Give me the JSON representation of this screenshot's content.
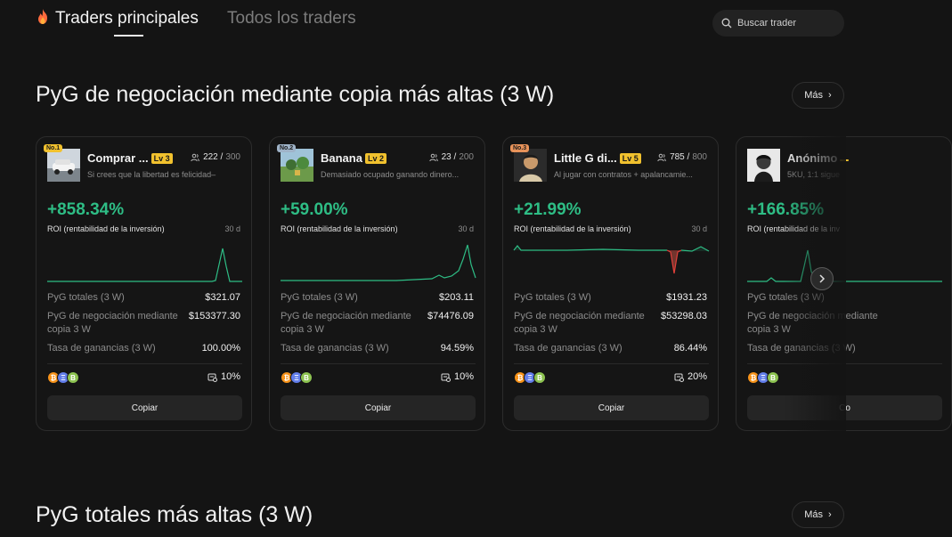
{
  "tabs": {
    "active": "Traders principales",
    "inactive": "Todos los traders"
  },
  "search": {
    "placeholder": "Buscar trader"
  },
  "sections": [
    {
      "title": "PyG de negociación mediante copia más altas (3 W)",
      "more": "Más"
    },
    {
      "title": "PyG totales más altas (3 W)",
      "more": "Más"
    }
  ],
  "colors": {
    "positive": "#2ebd85",
    "negative": "#e0403a",
    "level_badge": "#f1c12e",
    "background": "#141414"
  },
  "cards": [
    {
      "rank": "No.1",
      "rank_color": "#f1c12e",
      "name": "Comprar ...",
      "level": "Lv 3",
      "followers": "222",
      "followers_max": "300",
      "bio": "Si crees que la libertad es felicidad–",
      "roi": "+858.34%",
      "roi_label": "ROI (rentabilidad de la inversión)",
      "period": "30 d",
      "stats": [
        {
          "label": "PyG totales (3 W)",
          "value": "$321.07"
        },
        {
          "label": "PyG de negociación mediante copia 3 W",
          "value": "$153377.30"
        },
        {
          "label": "Tasa de ganancias (3 W)",
          "value": "100.00%"
        }
      ],
      "coins": [
        "bitcoin-icon",
        "ethereum-icon",
        "bitcoin-cash-icon"
      ],
      "share": "10%",
      "copy": "Copiar"
    },
    {
      "rank": "No.2",
      "rank_color": "#9fb3c8",
      "name": "Banana",
      "level": "Lv 2",
      "followers": "23",
      "followers_max": "200",
      "bio": "Demasiado ocupado ganando dinero...",
      "roi": "+59.00%",
      "roi_label": "ROI (rentabilidad de la inversión)",
      "period": "30 d",
      "stats": [
        {
          "label": "PyG totales (3 W)",
          "value": "$203.11"
        },
        {
          "label": "PyG de negociación mediante copia 3 W",
          "value": "$74476.09"
        },
        {
          "label": "Tasa de ganancias (3 W)",
          "value": "94.59%"
        }
      ],
      "coins": [
        "bitcoin-icon",
        "ethereum-icon",
        "bitcoin-cash-icon"
      ],
      "share": "10%",
      "copy": "Copiar"
    },
    {
      "rank": "No.3",
      "rank_color": "#e8935a",
      "name": "Little G di...",
      "level": "Lv 5",
      "followers": "785",
      "followers_max": "800",
      "bio": "Al jugar con contratos + apalancamie...",
      "roi": "+21.99%",
      "roi_label": "ROI (rentabilidad de la inversión)",
      "period": "30 d",
      "stats": [
        {
          "label": "PyG totales (3 W)",
          "value": "$1931.23"
        },
        {
          "label": "PyG de negociación mediante copia 3 W",
          "value": "$53298.03"
        },
        {
          "label": "Tasa de ganancias (3 W)",
          "value": "86.44%"
        }
      ],
      "coins": [
        "bitcoin-icon",
        "ethereum-icon",
        "bitcoin-cash-icon"
      ],
      "share": "20%",
      "copy": "Copiar"
    },
    {
      "rank": "",
      "rank_color": "",
      "name": "Anónimo",
      "level": "",
      "followers": "",
      "followers_max": "",
      "bio": "5KU, 1:1 sigue",
      "roi": "+166.85%",
      "roi_label": "ROI (rentabilidad de la inv",
      "period": "",
      "stats": [
        {
          "label": "PyG totales (3 W)",
          "value": ""
        },
        {
          "label": "PyG de negociación mediante copia 3 W",
          "value": ""
        },
        {
          "label": "Tasa de ganancias (3 W)",
          "value": ""
        }
      ],
      "coins": [
        "bitcoin-icon",
        "ethereum-icon",
        "bitcoin-cash-icon"
      ],
      "share": "",
      "copy": "Co"
    }
  ]
}
